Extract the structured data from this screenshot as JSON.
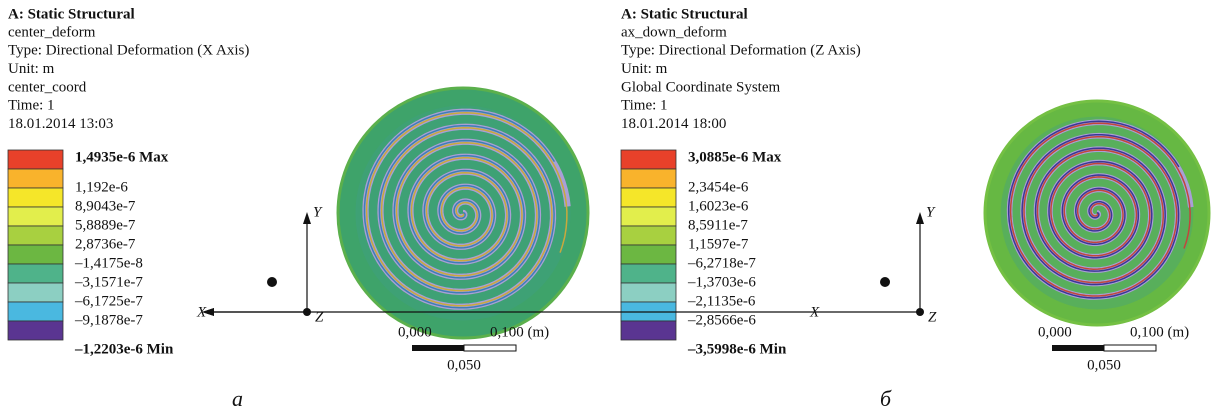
{
  "panels": [
    {
      "title": "A: Static Structural",
      "lines": [
        "center_deform",
        "Type: Directional Deformation (X Axis)",
        "Unit: m",
        "center_coord",
        "Time: 1",
        "18.01.2014 13:03"
      ],
      "legend": {
        "labels": [
          "1,4935e-6 Max",
          "1,192e-6",
          "8,9043e-7",
          "5,8889e-7",
          "2,8736e-7",
          "–1,4175e-8",
          "–3,1571e-7",
          "–6,1725e-7",
          "–9,1878e-7",
          "–1,2203e-6 Min"
        ],
        "colors": [
          "#e8412a",
          "#f9b32c",
          "#f5e629",
          "#e2ee4c",
          "#a8d040",
          "#6cb742",
          "#4fb38a",
          "#8ccfc2",
          "#4ab8e0",
          "#5a3591"
        ]
      },
      "axes": {
        "x": "X",
        "y": "Y",
        "z": "Z"
      },
      "scale": {
        "start": "0,000",
        "end": "0,100 (m)",
        "mid": "0,050"
      },
      "caption": "а"
    },
    {
      "title": "A: Static Structural",
      "lines": [
        "ax_down_deform",
        "Type: Directional Deformation (Z Axis)",
        "Unit: m",
        "Global Coordinate System",
        "Time: 1",
        "18.01.2014 18:00"
      ],
      "legend": {
        "labels": [
          "3,0885e-6 Max",
          "2,3454e-6",
          "1,6023e-6",
          "8,5911e-7",
          "1,1597e-7",
          "–6,2718e-7",
          "–1,3703e-6",
          "–2,1135e-6",
          "–2,8566e-6",
          "–3,5998e-6 Min"
        ],
        "colors": [
          "#e8412a",
          "#f9b32c",
          "#f5e629",
          "#e2ee4c",
          "#a8d040",
          "#6cb742",
          "#4fb38a",
          "#8ccfc2",
          "#4ab8e0",
          "#5a3591"
        ]
      },
      "axes": {
        "x": "X",
        "y": "Y",
        "z": "Z"
      },
      "scale": {
        "start": "0,000",
        "end": "0,100 (m)",
        "mid": "0,050"
      },
      "caption": "б"
    }
  ]
}
